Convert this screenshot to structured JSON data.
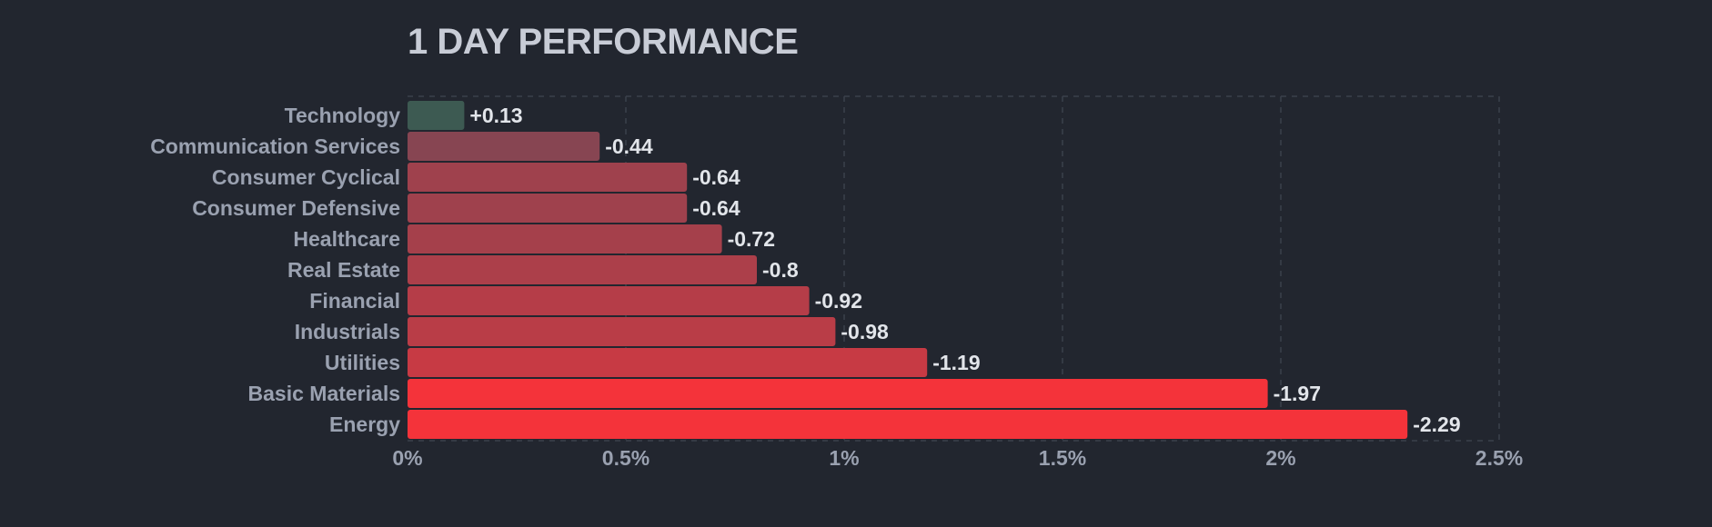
{
  "chart_data": {
    "type": "bar",
    "orientation": "horizontal",
    "title": "1 DAY PERFORMANCE",
    "xlabel": "",
    "ylabel": "",
    "xlim": [
      0,
      2.5
    ],
    "x_ticks": [
      "0%",
      "0.5%",
      "1%",
      "1.5%",
      "2%",
      "2.5%"
    ],
    "x_tick_values": [
      0,
      0.5,
      1,
      1.5,
      2,
      2.5
    ],
    "grid": true,
    "legend": "none",
    "categories": [
      "Technology",
      "Communication Services",
      "Consumer Cyclical",
      "Consumer Defensive",
      "Healthcare",
      "Real Estate",
      "Financial",
      "Industrials",
      "Utilities",
      "Basic Materials",
      "Energy"
    ],
    "values": [
      0.13,
      -0.44,
      -0.64,
      -0.64,
      -0.72,
      -0.8,
      -0.92,
      -0.98,
      -1.19,
      -1.97,
      -2.29
    ],
    "value_labels": [
      "+0.13",
      "-0.44",
      "-0.64",
      "-0.64",
      "-0.72",
      "-0.8",
      "-0.92",
      "-0.98",
      "-1.19",
      "-1.97",
      "-2.29"
    ],
    "colors": {
      "positive": "#3d5a52",
      "negative_light": "#874552",
      "negative_strong": "#f4333a",
      "background": "#22262f",
      "grid": "#3b404b"
    }
  }
}
